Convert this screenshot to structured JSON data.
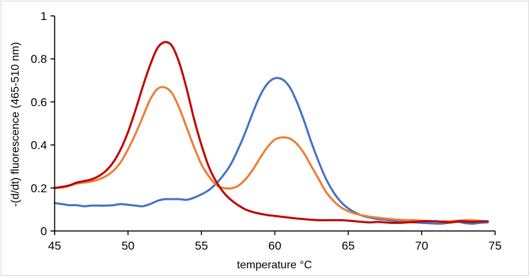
{
  "chart_data": {
    "type": "line",
    "title": "",
    "xlabel": "temperature  °C",
    "ylabel": "-(d/dt) fluorescence (465-510 nm)",
    "xlim": [
      45,
      75
    ],
    "ylim": [
      0,
      1
    ],
    "xticks": [
      45,
      50,
      55,
      60,
      65,
      70,
      75
    ],
    "yticks": [
      0,
      0.2,
      0.4,
      0.6,
      0.8,
      1
    ],
    "xtick_labels": [
      "45",
      "50",
      "55",
      "60",
      "65",
      "70",
      "75"
    ],
    "ytick_labels": [
      "0",
      "0.2",
      "0.4",
      "0.6",
      "0.8",
      "1"
    ],
    "grid": false,
    "legend": "none",
    "x": [
      45,
      45.5,
      46,
      46.5,
      47,
      47.5,
      48,
      48.5,
      49,
      49.5,
      50,
      50.5,
      51,
      51.5,
      52,
      52.5,
      53,
      53.5,
      54,
      54.5,
      55,
      55.5,
      56,
      56.5,
      57,
      57.5,
      58,
      58.5,
      59,
      59.5,
      60,
      60.5,
      61,
      61.5,
      62,
      62.5,
      63,
      63.5,
      64,
      64.5,
      65,
      65.5,
      66,
      66.5,
      67,
      67.5,
      68,
      68.5,
      69,
      69.5,
      70,
      70.5,
      71,
      71.5,
      72,
      72.5,
      73,
      73.5,
      74,
      74.5
    ],
    "series": [
      {
        "name": "blue",
        "color": "#4472c4",
        "values": [
          0.13,
          0.125,
          0.12,
          0.12,
          0.115,
          0.118,
          0.118,
          0.118,
          0.12,
          0.125,
          0.122,
          0.118,
          0.115,
          0.125,
          0.14,
          0.148,
          0.148,
          0.148,
          0.145,
          0.155,
          0.17,
          0.19,
          0.22,
          0.26,
          0.31,
          0.38,
          0.46,
          0.55,
          0.63,
          0.685,
          0.71,
          0.705,
          0.67,
          0.6,
          0.51,
          0.41,
          0.32,
          0.24,
          0.18,
          0.135,
          0.105,
          0.085,
          0.07,
          0.062,
          0.056,
          0.052,
          0.048,
          0.045,
          0.042,
          0.04,
          0.038,
          0.036,
          0.034,
          0.035,
          0.04,
          0.042,
          0.036,
          0.034,
          0.038,
          0.04
        ]
      },
      {
        "name": "orange",
        "color": "#ed7d31",
        "values": [
          0.2,
          0.202,
          0.21,
          0.22,
          0.225,
          0.23,
          0.24,
          0.255,
          0.28,
          0.32,
          0.38,
          0.45,
          0.53,
          0.61,
          0.66,
          0.668,
          0.64,
          0.57,
          0.48,
          0.39,
          0.31,
          0.255,
          0.215,
          0.2,
          0.198,
          0.21,
          0.24,
          0.285,
          0.34,
          0.39,
          0.425,
          0.435,
          0.43,
          0.405,
          0.36,
          0.3,
          0.24,
          0.18,
          0.14,
          0.11,
          0.092,
          0.08,
          0.072,
          0.066,
          0.062,
          0.058,
          0.055,
          0.052,
          0.05,
          0.05,
          0.048,
          0.046,
          0.044,
          0.045,
          0.046,
          0.048,
          0.05,
          0.05,
          0.046,
          0.045
        ]
      },
      {
        "name": "red",
        "color": "#c00000",
        "values": [
          0.2,
          0.205,
          0.212,
          0.225,
          0.232,
          0.24,
          0.255,
          0.28,
          0.32,
          0.38,
          0.46,
          0.56,
          0.67,
          0.77,
          0.85,
          0.878,
          0.86,
          0.78,
          0.66,
          0.52,
          0.4,
          0.3,
          0.23,
          0.18,
          0.145,
          0.12,
          0.1,
          0.088,
          0.08,
          0.074,
          0.07,
          0.066,
          0.062,
          0.058,
          0.055,
          0.052,
          0.05,
          0.05,
          0.05,
          0.05,
          0.048,
          0.045,
          0.042,
          0.04,
          0.042,
          0.04,
          0.038,
          0.038,
          0.04,
          0.042,
          0.045,
          0.046,
          0.045,
          0.042,
          0.04,
          0.045,
          0.044,
          0.042,
          0.045,
          0.045
        ]
      }
    ]
  }
}
